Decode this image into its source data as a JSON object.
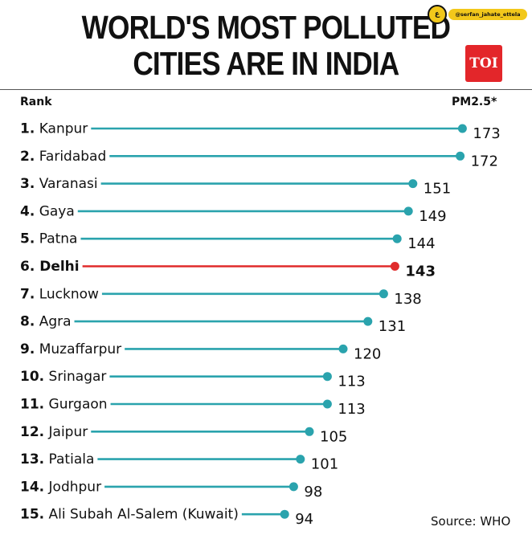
{
  "title_line1": "WORLD'S MOST POLLUTED",
  "title_line2": "CITIES ARE IN INDIA",
  "logo_text": "TOI",
  "watermark": {
    "badge": "ع",
    "handle": "@serfan_jahate_ettela"
  },
  "rank_header": "Rank",
  "value_header": "PM2.5*",
  "source": "Source: WHO",
  "colors": {
    "bar": "#2aa3ad",
    "highlight": "#e02b2b",
    "text": "#111111"
  },
  "chart_data": {
    "type": "bar",
    "orientation": "horizontal",
    "highlight_index": 5,
    "categories": [
      "1. Kanpur",
      "2. Faridabad",
      "3. Varanasi",
      "4. Gaya",
      "5. Patna",
      "6. Delhi",
      "7. Lucknow",
      "8. Agra",
      "9. Muzaffarpur",
      "10. Srinagar",
      "11. Gurgaon",
      "12. Jaipur",
      "13. Patiala",
      "14. Jodhpur",
      "15. Ali Subah Al-Salem (Kuwait)"
    ],
    "values": [
      173,
      172,
      151,
      149,
      144,
      143,
      138,
      131,
      120,
      113,
      113,
      105,
      101,
      98,
      94
    ]
  }
}
